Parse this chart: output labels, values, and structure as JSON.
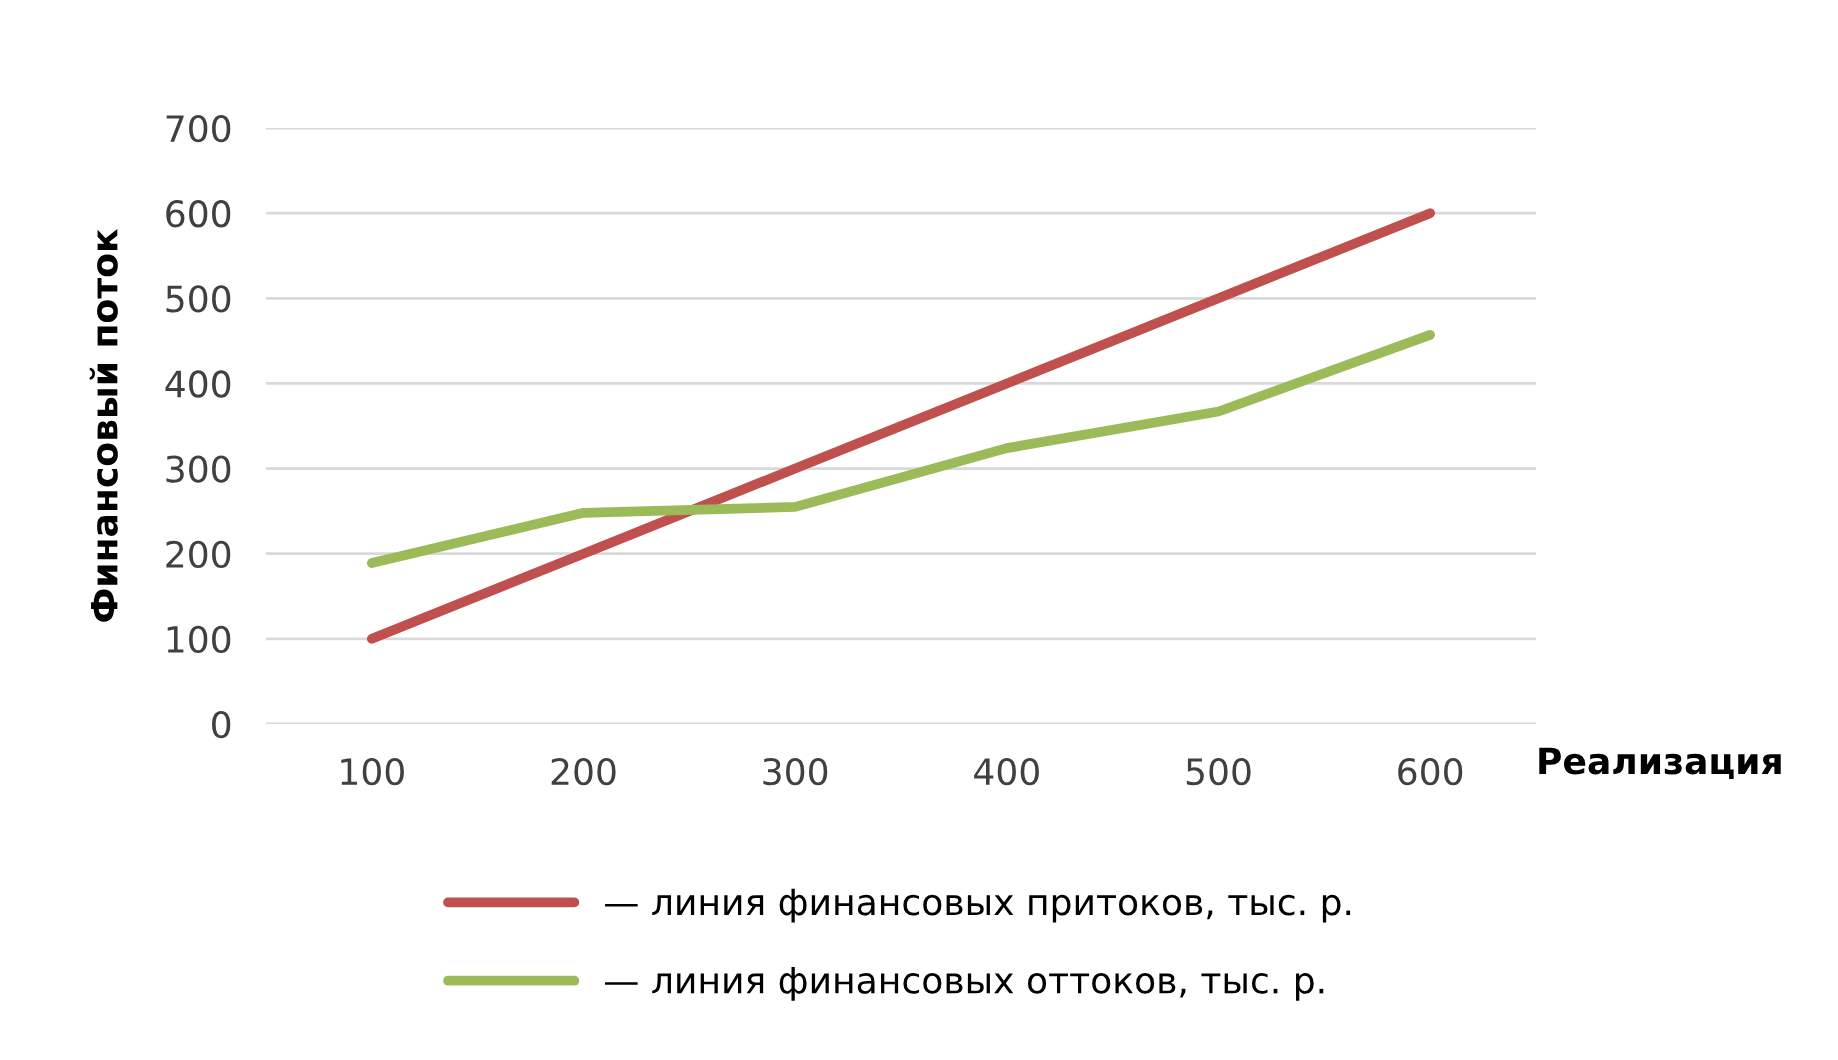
{
  "chart_data": {
    "type": "line",
    "xlabel": "Реализация",
    "ylabel": "Финансовый поток",
    "categories": [
      "100",
      "200",
      "300",
      "400",
      "500",
      "600"
    ],
    "series": [
      {
        "name": "— линия финансовых притоков, тыс. р.",
        "color": "#c0504d",
        "values": [
          100,
          200,
          300,
          400,
          500,
          600
        ]
      },
      {
        "name": "— линия финансовых оттоков, тыс. р.",
        "color": "#9bbb59",
        "values": [
          189,
          248,
          255,
          324,
          367,
          457
        ]
      }
    ],
    "ylim": [
      0,
      700
    ],
    "yticks": [
      0,
      100,
      200,
      300,
      400,
      500,
      600,
      700
    ],
    "grid": "y",
    "legend": "bottom",
    "marker": "none",
    "line_style": "solid"
  }
}
